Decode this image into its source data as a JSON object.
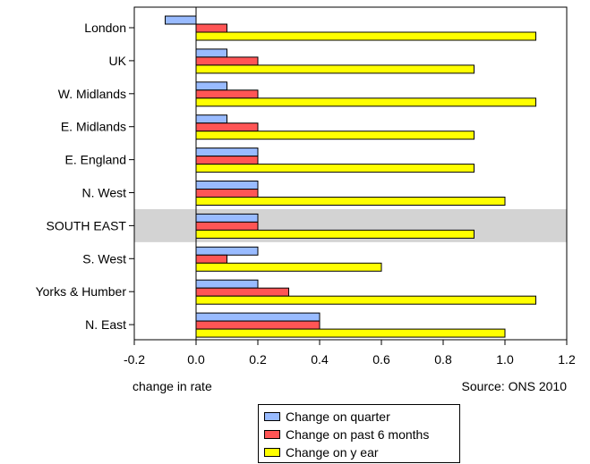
{
  "chart_data": {
    "type": "bar",
    "orientation": "horizontal",
    "categories": [
      "London",
      "UK",
      "W. Midlands",
      "E. Midlands",
      "E. England",
      "N. West",
      "SOUTH EAST",
      "S. West",
      "Yorks & Humber",
      "N. East"
    ],
    "highlighted_category": "SOUTH EAST",
    "series": [
      {
        "name": "Change on quarter",
        "color": "#99bbff",
        "values": [
          -0.1,
          0.1,
          0.1,
          0.1,
          0.2,
          0.2,
          0.2,
          0.2,
          0.2,
          0.4
        ]
      },
      {
        "name": "Change on past 6 months",
        "color": "#ff5555",
        "values": [
          0.1,
          0.2,
          0.2,
          0.2,
          0.2,
          0.2,
          0.2,
          0.1,
          0.3,
          0.4
        ]
      },
      {
        "name": "Change on y ear",
        "color": "#ffff00",
        "values": [
          1.1,
          0.9,
          1.1,
          0.9,
          0.9,
          1.0,
          0.9,
          0.6,
          1.1,
          1.0
        ]
      }
    ],
    "xlim": [
      -0.2,
      1.2
    ],
    "xticks": [
      "-0.2",
      "0.0",
      "0.2",
      "0.4",
      "0.6",
      "0.8",
      "1.0",
      "1.2"
    ],
    "xlabel": "change in rate",
    "source_note": "Source: ONS 2010",
    "grid": false,
    "legend_position": "bottom-center",
    "highlight_color": "#d3d3d3"
  }
}
